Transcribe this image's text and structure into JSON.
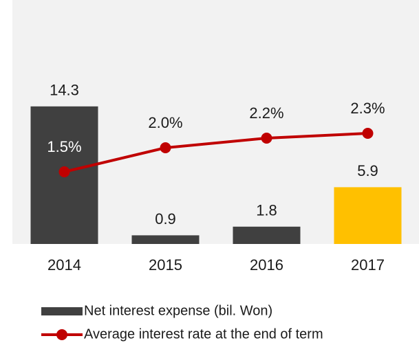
{
  "chart_data": {
    "type": "bar-line",
    "categories": [
      "2014",
      "2015",
      "2016",
      "2017"
    ],
    "series": [
      {
        "name": "Net interest expense (bil. Won)",
        "type": "bar",
        "colors": [
          "#404040",
          "#404040",
          "#404040",
          "#ffc000"
        ],
        "color": "#404040",
        "values": [
          14.3,
          0.9,
          1.8,
          5.9
        ]
      },
      {
        "name": "Average interest rate at the end of term",
        "type": "line",
        "axis": "y2",
        "color": "#c00000",
        "values": [
          1.5,
          2.0,
          2.2,
          2.3
        ],
        "value_labels": [
          "1.5%",
          "2.0%",
          "2.2%",
          "2.3%"
        ]
      }
    ],
    "ylim": [
      0,
      25
    ],
    "y2lim": [
      0,
      5
    ],
    "grid": false
  }
}
